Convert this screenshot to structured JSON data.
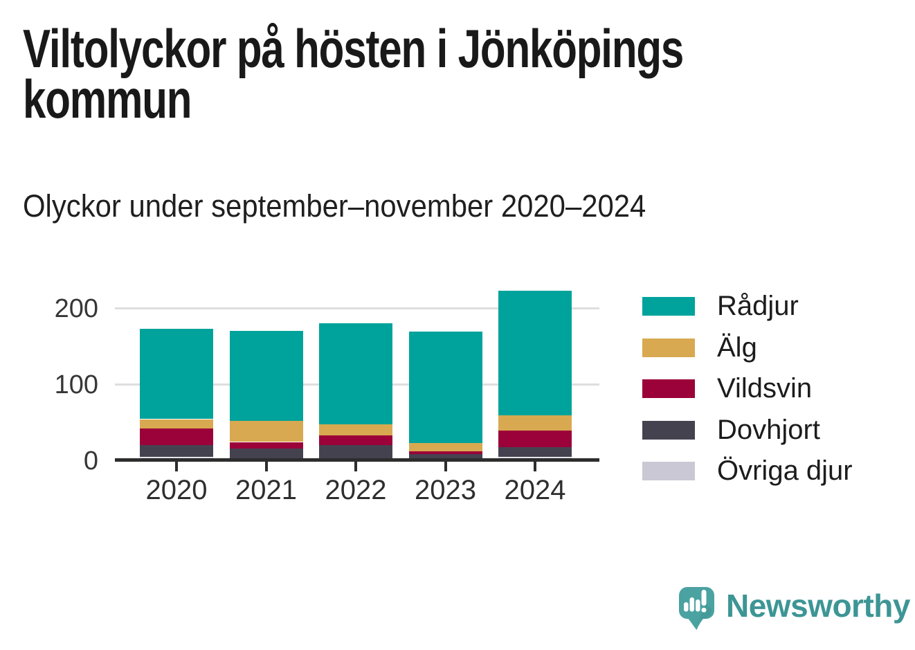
{
  "header": {
    "title": "Viltolyckor på hösten i Jönköpings kommun",
    "subtitle": "Olyckor under september–november 2020–2024"
  },
  "chart_data": {
    "type": "bar",
    "stacked": true,
    "title": "Viltolyckor på hösten i Jönköpings kommun",
    "subtitle": "Olyckor under september–november 2020–2024",
    "categories": [
      "2020",
      "2021",
      "2022",
      "2023",
      "2024"
    ],
    "series": [
      {
        "name": "Rådjur",
        "color": "#00a39b",
        "values": [
          119,
          118,
          133,
          146,
          164
        ]
      },
      {
        "name": "Älg",
        "color": "#d8a950",
        "values": [
          12,
          28,
          14,
          11,
          20
        ]
      },
      {
        "name": "Vildsvin",
        "color": "#9b0239",
        "values": [
          22,
          9,
          13,
          4,
          22
        ]
      },
      {
        "name": "Dovhjort",
        "color": "#454250",
        "values": [
          16,
          14,
          19,
          8,
          13
        ]
      },
      {
        "name": "Övriga djur",
        "color": "#c9c8d4",
        "values": [
          5,
          2,
          2,
          1,
          5
        ]
      }
    ],
    "stack_order_bottom_to_top": [
      "Övriga djur",
      "Dovhjort",
      "Vildsvin",
      "Älg",
      "Rådjur"
    ],
    "xlabel": "",
    "ylabel": "",
    "yticks": [
      0,
      100,
      200
    ],
    "ytick_labels": [
      "0",
      "100",
      "200"
    ],
    "ylim": [
      0,
      230
    ],
    "grid": "horizontal",
    "legend_position": "right"
  },
  "footer": {
    "brand": "Newsworthy",
    "logo_icon": "speech-bubble-bar-chart-icon",
    "brand_color": "#3d9595",
    "logo_bubble_color": "#4aa2a1"
  },
  "colors": {
    "background": "#ffffff",
    "axis": "#2d2d2d",
    "gridline": "#dedede",
    "title_text": "#191919",
    "label_text": "#363636"
  }
}
